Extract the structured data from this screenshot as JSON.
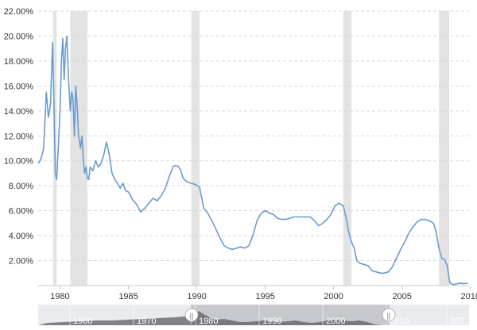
{
  "chart_data": {
    "type": "line",
    "title": "",
    "xlabel": "",
    "ylabel": "",
    "x_range": [
      1978.4,
      2009.9
    ],
    "ylim": [
      0,
      22
    ],
    "y_ticks": [
      "2.00%",
      "4.00%",
      "6.00%",
      "8.00%",
      "10.00%",
      "12.00%",
      "14.00%",
      "16.00%",
      "18.00%",
      "20.00%",
      "22.00%"
    ],
    "x_ticks": [
      "1980",
      "1985",
      "1990",
      "1995",
      "2000",
      "2005",
      "2010"
    ],
    "grid": "horizontal dashed",
    "recession_bands": [
      [
        1979.5,
        1979.75
      ],
      [
        1980.75,
        1982.0
      ],
      [
        1989.6,
        1990.2
      ],
      [
        2000.7,
        2001.3
      ],
      [
        2007.7,
        2008.45
      ]
    ],
    "series": [
      {
        "color": "#6a9bd0",
        "x": [
          1978.4,
          1978.6,
          1978.8,
          1979.0,
          1979.15,
          1979.3,
          1979.45,
          1979.55,
          1979.65,
          1979.75,
          1979.85,
          1980.0,
          1980.1,
          1980.2,
          1980.3,
          1980.4,
          1980.5,
          1980.6,
          1980.75,
          1980.85,
          1980.95,
          1981.05,
          1981.15,
          1981.25,
          1981.35,
          1981.5,
          1981.6,
          1981.7,
          1981.8,
          1981.9,
          1982.0,
          1982.1,
          1982.2,
          1982.4,
          1982.6,
          1982.8,
          1983.0,
          1983.2,
          1983.4,
          1983.6,
          1983.8,
          1984.0,
          1984.2,
          1984.4,
          1984.6,
          1984.8,
          1985.0,
          1985.3,
          1985.6,
          1985.9,
          1986.2,
          1986.5,
          1986.8,
          1987.1,
          1987.4,
          1987.7,
          1988.0,
          1988.3,
          1988.6,
          1988.8,
          1989.0,
          1989.3,
          1989.6,
          1989.9,
          1990.2,
          1990.5,
          1990.8,
          1991.1,
          1991.4,
          1991.7,
          1992.0,
          1992.3,
          1992.6,
          1992.9,
          1993.2,
          1993.5,
          1993.8,
          1994.1,
          1994.4,
          1994.7,
          1995.0,
          1995.3,
          1995.6,
          1995.9,
          1996.2,
          1996.5,
          1996.8,
          1997.1,
          1997.4,
          1997.7,
          1998.0,
          1998.3,
          1998.6,
          1998.9,
          1999.2,
          1999.5,
          1999.8,
          2000.1,
          2000.4,
          2000.7,
          2000.9,
          2001.1,
          2001.3,
          2001.5,
          2001.7,
          2001.9,
          2002.2,
          2002.5,
          2002.8,
          2003.1,
          2003.4,
          2003.7,
          2004.0,
          2004.3,
          2004.6,
          2004.9,
          2005.2,
          2005.5,
          2005.8,
          2006.1,
          2006.4,
          2006.7,
          2007.0,
          2007.3,
          2007.5,
          2007.7,
          2007.9,
          2008.1,
          2008.3,
          2008.5,
          2008.7,
          2008.9,
          2009.2,
          2009.5,
          2009.8
        ],
        "y": [
          9.8,
          10.1,
          11.0,
          15.5,
          13.5,
          14.5,
          19.5,
          15.0,
          9.0,
          8.5,
          10.5,
          14.0,
          18.0,
          19.8,
          16.5,
          19.0,
          20.0,
          17.0,
          14.0,
          15.5,
          15.0,
          12.0,
          16.0,
          14.5,
          12.0,
          11.0,
          12.0,
          10.0,
          9.0,
          9.5,
          8.6,
          8.5,
          9.5,
          9.2,
          10.0,
          9.5,
          9.8,
          10.5,
          11.5,
          10.5,
          9.0,
          8.5,
          8.2,
          7.8,
          8.2,
          7.6,
          7.5,
          6.9,
          6.5,
          5.9,
          6.2,
          6.6,
          7.0,
          6.8,
          7.2,
          7.8,
          8.8,
          9.6,
          9.6,
          9.3,
          8.6,
          8.3,
          8.2,
          8.1,
          7.9,
          6.2,
          5.8,
          5.2,
          4.5,
          3.8,
          3.2,
          3.0,
          2.9,
          3.0,
          3.1,
          3.0,
          3.2,
          4.0,
          5.2,
          5.8,
          6.0,
          5.8,
          5.7,
          5.4,
          5.3,
          5.3,
          5.4,
          5.5,
          5.5,
          5.5,
          5.5,
          5.5,
          5.2,
          4.8,
          5.0,
          5.3,
          5.7,
          6.4,
          6.6,
          6.4,
          5.5,
          4.3,
          3.5,
          3.0,
          2.0,
          1.8,
          1.7,
          1.6,
          1.2,
          1.1,
          1.0,
          1.0,
          1.1,
          1.5,
          2.2,
          2.9,
          3.5,
          4.2,
          4.7,
          5.1,
          5.3,
          5.3,
          5.2,
          5.0,
          4.3,
          3.0,
          2.2,
          2.1,
          1.6,
          0.2,
          0.1,
          0.1,
          0.2,
          0.15,
          0.2
        ]
      }
    ]
  },
  "navigator": {
    "ticks": [
      "1960",
      "1970",
      "1980",
      "1990",
      "2000",
      "2010",
      "202"
    ],
    "handle_left_glyph": "||",
    "handle_right_glyph": "||"
  }
}
